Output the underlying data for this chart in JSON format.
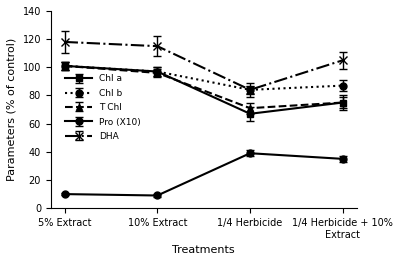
{
  "x_labels": [
    "5% Extract",
    "10% Extract",
    "1/4 Herbicide",
    "1/4 Herbicide + 10%\nExtract"
  ],
  "series": {
    "Chl a": {
      "y": [
        101,
        97,
        67,
        75
      ],
      "yerr": [
        3,
        3,
        5,
        5
      ],
      "color": "black",
      "linestyle": "-",
      "marker": "s",
      "linewidth": 1.5
    },
    "Chl b": {
      "y": [
        101,
        97,
        84,
        87
      ],
      "yerr": [
        3,
        3,
        3,
        4
      ],
      "color": "black",
      "linestyle": ":",
      "marker": "o",
      "linewidth": 1.5
    },
    "T Chl": {
      "y": [
        101,
        96,
        71,
        75
      ],
      "yerr": [
        3,
        3,
        4,
        4
      ],
      "color": "black",
      "linestyle": "--",
      "marker": "^",
      "linewidth": 1.5
    },
    "Pro (X10)": {
      "y": [
        10,
        9,
        39,
        35
      ],
      "yerr": [
        1,
        1,
        2,
        2
      ],
      "color": "black",
      "linestyle": "-",
      "marker": "o",
      "linewidth": 1.5
    },
    "DHA": {
      "y": [
        118,
        115,
        84,
        105
      ],
      "yerr": [
        8,
        7,
        5,
        6
      ],
      "color": "black",
      "linestyle": "-.",
      "marker": "x",
      "linewidth": 1.5
    }
  },
  "xlabel": "Treatments",
  "ylabel": "Parameters (% of control)",
  "ylim": [
    0,
    140
  ],
  "yticks": [
    0,
    20,
    40,
    60,
    80,
    100,
    120,
    140
  ],
  "background_color": "#ffffff",
  "figsize": [
    4.0,
    2.62
  ],
  "dpi": 100
}
